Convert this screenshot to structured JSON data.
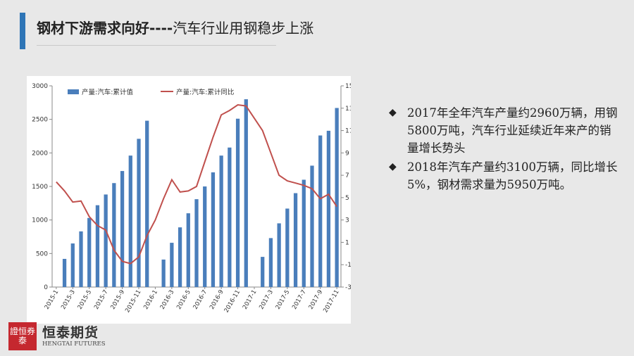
{
  "slide": {
    "title_bold": "钢材下游需求向好----",
    "title_rest": "汽车行业用钢稳步上涨",
    "bullets": [
      "2017年全年汽车产量约2960万辆，用钢5800万吨，汽车行业延续近年来产的销量增长势头",
      "2018年汽车产量约3100万辆，同比增长5%，钢材需求量为5950万吨。"
    ],
    "bullet_marker": "◆"
  },
  "logo": {
    "seal_text": "證恒券泰",
    "name_cn": "恒泰期货",
    "name_en": "HENGTAI FUTURES"
  },
  "chart_data": {
    "type": "bar+line",
    "legend_placement": "top",
    "grid": false,
    "colors": {
      "bar": "#4a7ebb",
      "line": "#c0504d"
    },
    "categories": [
      "2015-1",
      "2015-2",
      "2015-3",
      "2015-4",
      "2015-5",
      "2015-6",
      "2015-7",
      "2015-8",
      "2015-9",
      "2015-10",
      "2015-11",
      "2015-12",
      "2016-1",
      "2016-2",
      "2016-3",
      "2016-4",
      "2016-5",
      "2016-6",
      "2016-7",
      "2016-8",
      "2016-9",
      "2016-10",
      "2016-11",
      "2016-12",
      "2017-1",
      "2017-2",
      "2017-3",
      "2017-4",
      "2017-5",
      "2017-6",
      "2017-7",
      "2017-8",
      "2017-9",
      "2017-10",
      "2017-11"
    ],
    "tick_labels": [
      "2015-1",
      "2015-3",
      "2015-5",
      "2015-7",
      "2015-9",
      "2015-11",
      "2016-1",
      "2016-3",
      "2016-5",
      "2016-7",
      "2016-9",
      "2016-11",
      "2017-1",
      "2017-3",
      "2017-5",
      "2017-7",
      "2017-9",
      "2017-11"
    ],
    "series": [
      {
        "name": "产量:汽车:累计值",
        "kind": "bar",
        "axis": "left",
        "values": [
          null,
          420,
          650,
          830,
          1030,
          1220,
          1380,
          1550,
          1730,
          1960,
          2210,
          2480,
          null,
          410,
          660,
          890,
          1100,
          1310,
          1500,
          1710,
          1960,
          2080,
          2510,
          2800,
          null,
          450,
          730,
          950,
          1170,
          1400,
          1600,
          1810,
          2260,
          2330,
          2670
        ]
      },
      {
        "name": "产量:汽车:累计同比",
        "kind": "line",
        "axis": "right",
        "values": [
          6.4,
          5.6,
          4.6,
          4.7,
          3.3,
          2.5,
          2.1,
          0.3,
          -0.7,
          -0.9,
          -0.3,
          1.6,
          3.0,
          4.9,
          6.6,
          5.5,
          5.6,
          6.0,
          8.2,
          10.4,
          12.4,
          12.8,
          13.3,
          13.2,
          12.1,
          11.0,
          9.0,
          7.0,
          6.5,
          6.3,
          6.1,
          5.8,
          4.9,
          5.3,
          4.2
        ]
      }
    ],
    "y_left": {
      "min": 0,
      "max": 3000,
      "ticks": [
        0,
        500,
        1000,
        1500,
        2000,
        2500,
        3000
      ]
    },
    "y_right": {
      "min": -3,
      "max": 15,
      "ticks": [
        -3,
        -1,
        1,
        3,
        5,
        7,
        9,
        11,
        13,
        15
      ]
    }
  }
}
